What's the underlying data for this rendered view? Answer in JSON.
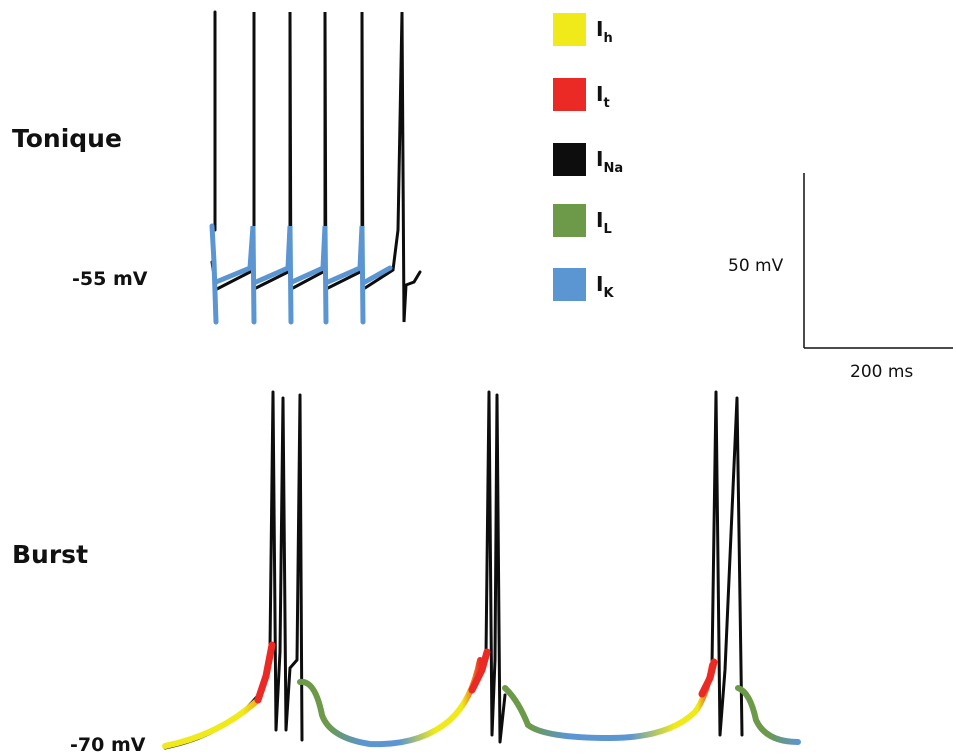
{
  "labels": {
    "tonic": "Tonique",
    "burst": "Burst",
    "tonic_potential": "-55 mV",
    "burst_potential": "-70 mV"
  },
  "scale_bar": {
    "voltage": "50 mV",
    "time": "200 ms"
  },
  "legend": [
    {
      "base": "I",
      "sub": "h",
      "color": "#f0ea1a"
    },
    {
      "base": "I",
      "sub": "t",
      "color": "#ec2a25"
    },
    {
      "base": "I",
      "sub": "Na",
      "color": "#0d0d0d"
    },
    {
      "base": "I",
      "sub": "L",
      "color": "#6c9a48"
    },
    {
      "base": "I",
      "sub": "K",
      "color": "#5b95d2"
    }
  ]
}
